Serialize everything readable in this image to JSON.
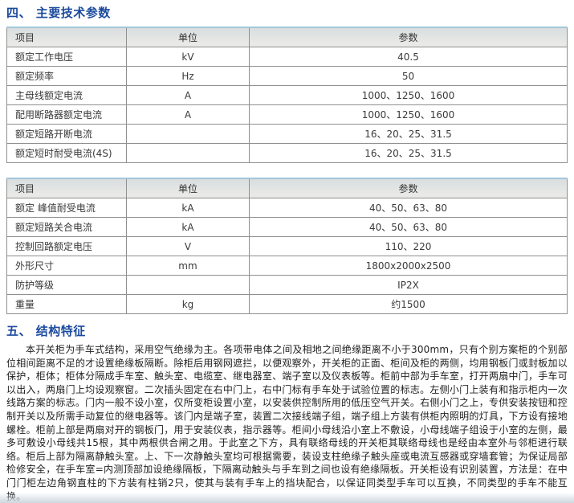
{
  "sections": {
    "s4_title": "四、 主要技术参数",
    "s5_title": "五、 结构特征"
  },
  "tables": [
    {
      "headers": [
        "项目",
        "单位",
        "参数"
      ],
      "rows": [
        [
          "额定工作电压",
          "kV",
          "40.5"
        ],
        [
          "额定频率",
          "Hz",
          "50"
        ],
        [
          "主母线额定电流",
          "A",
          "1000、1250、1600"
        ],
        [
          "配用断路器额定电流",
          "A",
          "1000、1250、1600"
        ],
        [
          "额定短路开断电流",
          "",
          "16、20、25、31.5"
        ],
        [
          "额定短时耐受电流(4S)",
          "",
          "16、20、25、31.5"
        ]
      ]
    },
    {
      "headers": [
        "项目",
        "单位",
        "参数"
      ],
      "rows": [
        [
          "额定 峰值耐受电流",
          "kA",
          "40、50、63、80"
        ],
        [
          "额定短路关合电流",
          "kA",
          "40、50、63、80"
        ],
        [
          "控制回路额定电压",
          "V",
          "110、220"
        ],
        [
          "外形尺寸",
          "mm",
          "1800x2000x2500"
        ],
        [
          "防护等级",
          "",
          "IP2X"
        ],
        [
          "重量",
          "kg",
          "约1500"
        ]
      ]
    }
  ],
  "paragraph": "本开关柜为手车式结构，采用空气绝缘为主。各项带电体之间及相地之间绝缘距离不小于300mm，只有个别方案柜的个别部位相间距离不足的才设置绝缘板隔断。除柜后用钢网遮拦，以便观察外，开关柜的正面、柜间及柜的两侧，均用钢板门或封板加以保护，柜体；柜体分隔成手车室、触头室、电缆室、继电器室、端子室以及仪表板等。柜前中部为手车室，打开两扇中门，手车可以出入，两扇门上均设观察窗。二次插头固定在右中门上，右中门标有手车处于试验位置的标志。左侧小门上装有和指示柜内一次线路方案的标志。门内一般不设小室，仅所变柜设置小室，以安装供控制所用的低压空气开关。右侧小门之上，专供安装按钮和控制开关以及所需手动复位的继电器等。该门内是端子室，装置二次接线端子组，端子组上方装有供柜内照明的灯具，下方设有接地螺栓。柜前上部是两扇对开的钢板门，用于安装仪表，指示器等。柜间小母线沿小室上不敷设，小母线端子组设于小室的左侧，最多可敷设小母线共15根，其中两根供合闸之用。于此室之下方，具有联络母线的开关柜其联络母线也是经由本室外与邻柜进行联络。柜后上部为隔离静触头室。上、下一次静触头室均可根据需要，装设支柱绝缘子触头座或电流互感器或穿墙套管；为保证局部检修安全，在手车室=内测顶部加设绝缘隔板，下隔离动触头与手车到之间也设有绝缘隔板。开关柜设有识别装置，方法是：在中门门柜左边角钢直柱的下方装有柱销2只，使其与装有手车上的挡块配合，以保证同类型手车可以互换，不同类型的手车不能互换。",
  "colors": {
    "title_blue": "#1b4a9e",
    "table_top_accent": "#a3c6da",
    "header_row_bg": "#e2e4e2",
    "table_border": "#909090"
  }
}
